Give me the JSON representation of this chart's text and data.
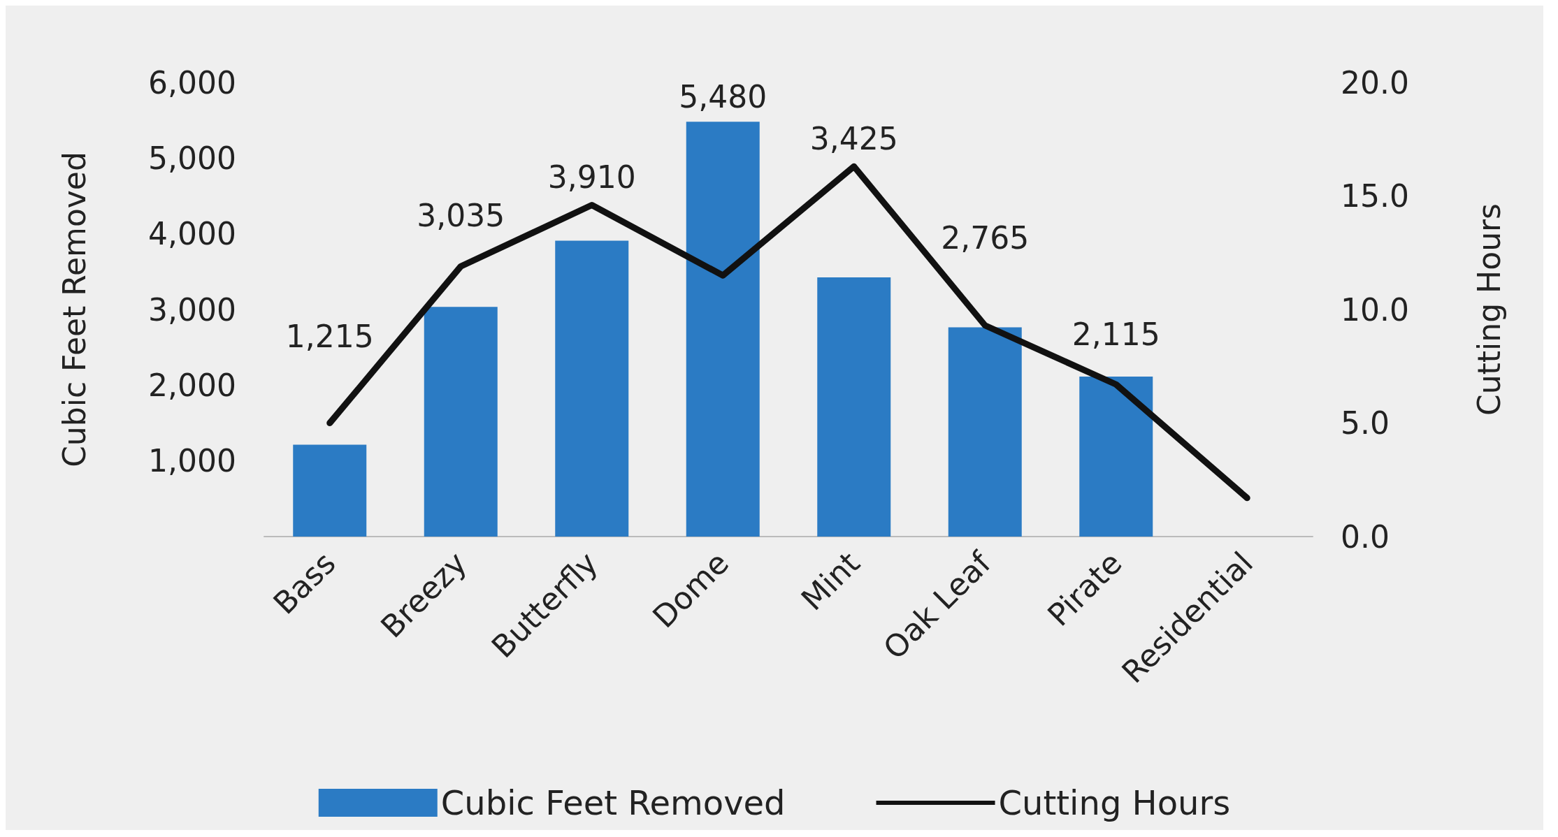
{
  "chart_data": {
    "type": "bar",
    "categories": [
      "Bass",
      "Breezy",
      "Butterfly",
      "Dome",
      "Mint",
      "Oak Leaf",
      "Pirate",
      "Residential"
    ],
    "series": [
      {
        "name": "Cubic Feet Removed",
        "type": "bar",
        "color": "#2b7bc4",
        "values": [
          1215,
          3035,
          3910,
          5480,
          3425,
          2765,
          2115,
          null
        ]
      },
      {
        "name": "Cutting Hours",
        "type": "line",
        "axis": "y2",
        "color": "#111111",
        "values": [
          5.0,
          11.9,
          14.6,
          11.5,
          16.3,
          9.3,
          6.7,
          1.7
        ]
      }
    ],
    "ylabel": "Cubic Feet Removed",
    "y2label": "Cutting Hours",
    "ylim": [
      0,
      6000
    ],
    "yticks": [
      {
        "value": 0,
        "label": null
      },
      {
        "value": 1000,
        "label": "1,000"
      },
      {
        "value": 2000,
        "label": "2,000"
      },
      {
        "value": 3000,
        "label": "3,000"
      },
      {
        "value": 4000,
        "label": "4,000"
      },
      {
        "value": 5000,
        "label": "5,000"
      },
      {
        "value": 6000,
        "label": "6,000"
      }
    ],
    "y2lim": [
      0,
      20
    ],
    "y2ticks": [
      {
        "value": 0,
        "label": "0.0"
      },
      {
        "value": 5,
        "label": "5.0"
      },
      {
        "value": 10,
        "label": "10.0"
      },
      {
        "value": 15,
        "label": "15.0"
      },
      {
        "value": 20,
        "label": "20.0"
      }
    ],
    "value_labels": [
      "1,215",
      "3,035",
      "3,910",
      "5,480",
      "3,425",
      "2,765",
      "2,115",
      null
    ],
    "grid": false,
    "legend": "bottom",
    "line_style": "solid"
  }
}
